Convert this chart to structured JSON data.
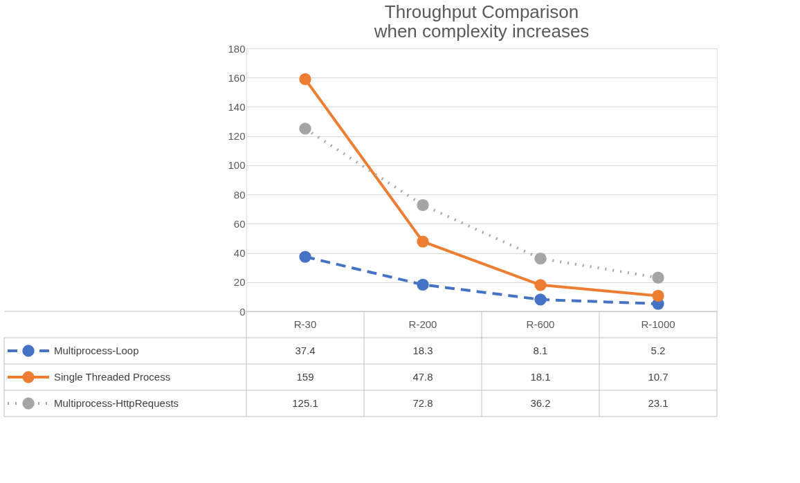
{
  "chart_data": {
    "type": "line",
    "title": "Throughput Comparison\nwhen complexity increases",
    "categories": [
      "R-30",
      "R-200",
      "R-600",
      "R-1000"
    ],
    "series": [
      {
        "name": "Multiprocess-Loop",
        "color": "#4472c4",
        "values": [
          37.4,
          18.3,
          8.1,
          5.2
        ],
        "line_style": "dashed"
      },
      {
        "name": "Single Threaded Process",
        "color": "#ed7d31",
        "values": [
          159,
          47.8,
          18.1,
          10.7
        ],
        "line_style": "solid"
      },
      {
        "name": "Multiprocess-HttpRequests",
        "color": "#a5a5a5",
        "values": [
          125.1,
          72.8,
          36.2,
          23.1
        ],
        "line_style": "dotted"
      }
    ],
    "ylim": [
      0,
      180
    ],
    "yticks": [
      0,
      20,
      40,
      60,
      80,
      100,
      120,
      140,
      160,
      180
    ],
    "grid": "y",
    "marker": "circle",
    "data_labels": true,
    "legend": "bottom"
  }
}
